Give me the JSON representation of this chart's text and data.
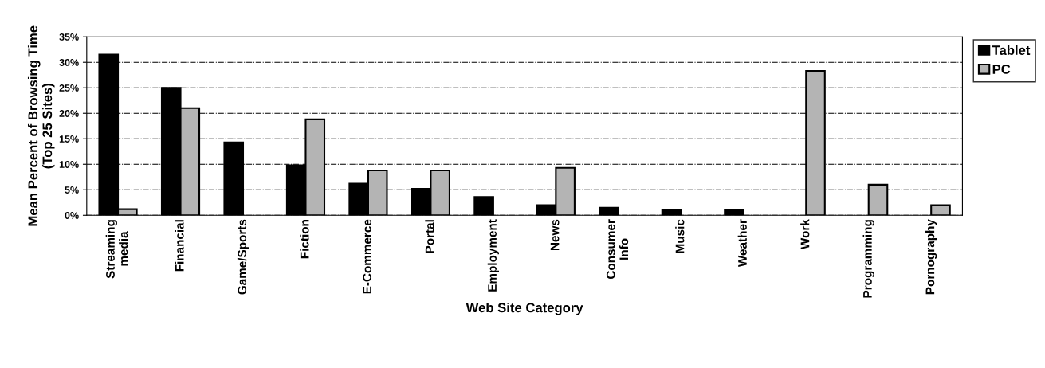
{
  "chart_data": {
    "type": "bar",
    "xlabel": "Web Site Category",
    "ylabel": "Mean Percent of Browsing Time\n(Top 25 Sites)",
    "categories": [
      "Streaming\nmedia",
      "Financial",
      "Game/Sports",
      "Fiction",
      "E-Commerce",
      "Portal",
      "Employment",
      "News",
      "Consumer\nInfo",
      "Music",
      "Weather",
      "Work",
      "Programming",
      "Pornography"
    ],
    "series": [
      {
        "name": "Tablet",
        "color": "#000000",
        "values": [
          31.5,
          25,
          14.3,
          9.8,
          6.2,
          5.2,
          3.6,
          2,
          1.5,
          1,
          1,
          null,
          null,
          null
        ]
      },
      {
        "name": "PC",
        "color": "#b4b4b4",
        "values": [
          1.2,
          21,
          null,
          18.8,
          8.8,
          8.8,
          null,
          9.3,
          null,
          null,
          null,
          28.3,
          6,
          2
        ]
      }
    ],
    "ylim": [
      0,
      35
    ],
    "yticks": [
      {
        "value": 0,
        "label": "0%"
      },
      {
        "value": 5,
        "label": "5%"
      },
      {
        "value": 10,
        "label": "10%"
      },
      {
        "value": 15,
        "label": "15%"
      },
      {
        "value": 20,
        "label": "20%"
      },
      {
        "value": 25,
        "label": "25%"
      },
      {
        "value": 30,
        "label": "30%"
      },
      {
        "value": 35,
        "label": "35%"
      }
    ],
    "grid": "y",
    "legend": "right"
  }
}
